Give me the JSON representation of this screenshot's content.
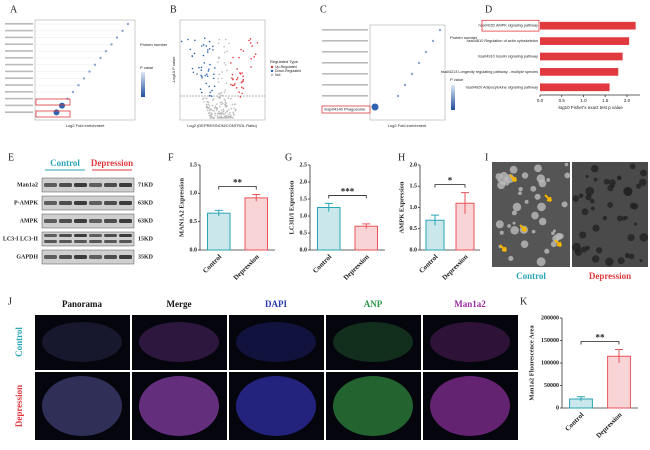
{
  "panels": [
    "A",
    "B",
    "C",
    "E",
    "I",
    "J"
  ],
  "panel_a": {
    "x_label": "Log2 Fold enrichment",
    "legend_size": "Protein number",
    "legend_color": "P value"
  },
  "panel_b": {
    "x_label": "Log2 (DEPRESSION/CONTROL Ratio)",
    "y_label": "-Log10 P value",
    "legend_title": "Regulated Type",
    "legend_items": [
      "Up-Regulated",
      "Down-Regulated",
      "Not"
    ]
  },
  "panel_c": {
    "x_label": "Log2 Fold enrichment",
    "legend_size": "Protein number",
    "legend_color": "P value",
    "highlight": "map04140 Phagosome"
  },
  "panel_e": {
    "groups": [
      "Control",
      "Depression"
    ],
    "rows": [
      "Man1a2",
      "P-AMPK",
      "AMPK",
      "LC3-I LC3-II",
      "GAPDH"
    ],
    "sizes": [
      "71KD",
      "63KD",
      "63KD",
      "15KD",
      "35KD"
    ]
  },
  "panel_i": {
    "groups": [
      "Control",
      "Depression"
    ]
  },
  "panel_j": {
    "columns": [
      "Panorama",
      "Merge",
      "DAPI",
      "ANP",
      "Man1a2"
    ],
    "rows": [
      "Control",
      "Depression"
    ]
  },
  "chart_data": [
    {
      "type": "barh",
      "label": "D",
      "x_label": "-log10 Fisher's exact test p value",
      "categories": [
        "hsa04152 AMPK signaling pathway",
        "hsa04810 Regulation of actin cytoskeleton",
        "hsa04910 Insulin signaling pathway",
        "hsa04213 Longevity regulating pathway - multiple species",
        "hsa04920 Adipocytokine signaling pathway"
      ],
      "values": [
        2.2,
        2.05,
        1.9,
        1.8,
        1.6
      ],
      "color": "#e0393e",
      "highlight": 0,
      "xlim": [
        0,
        2.3
      ],
      "xticks": [
        {
          "value": 0,
          "label": "0.0"
        },
        {
          "value": 0.5,
          "label": "0.5"
        },
        {
          "value": 1,
          "label": "1.0"
        },
        {
          "value": 1.5,
          "label": "1.5"
        },
        {
          "value": 2,
          "label": "2.0"
        }
      ]
    },
    {
      "type": "bar",
      "label": "F",
      "y_label": "MAN1A2 Expression",
      "categories": [
        "Control",
        "Depression"
      ],
      "values": [
        0.65,
        0.92
      ],
      "errors": [
        0.05,
        0.06
      ],
      "colors": [
        "#2aa5b5",
        "#e8545a"
      ],
      "sig": "**",
      "ylim": [
        0,
        1.5
      ],
      "yticks": [
        {
          "value": 0,
          "label": "0.0"
        },
        0.5,
        {
          "value": 1,
          "label": "1.0"
        },
        1.5
      ]
    },
    {
      "type": "bar",
      "label": "G",
      "y_label": "LC3II/I Expression",
      "categories": [
        "Control",
        "Depression"
      ],
      "values": [
        1.25,
        0.7
      ],
      "errors": [
        0.12,
        0.07
      ],
      "colors": [
        "#2aa5b5",
        "#e8545a"
      ],
      "sig": "***",
      "ylim": [
        0,
        2.5
      ],
      "yticks": [
        {
          "value": 0,
          "label": "0.0"
        },
        0.5,
        {
          "value": 1,
          "label": "1.0"
        },
        1.5,
        {
          "value": 2,
          "label": "2.0"
        },
        2.5
      ]
    },
    {
      "type": "bar",
      "label": "H",
      "y_label": "AMPK Expression",
      "categories": [
        "Control",
        "Depression"
      ],
      "values": [
        0.7,
        1.1
      ],
      "errors": [
        0.12,
        0.25
      ],
      "colors": [
        "#2aa5b5",
        "#e8545a"
      ],
      "sig": "*",
      "ylim": [
        0,
        2
      ],
      "yticks": [
        {
          "value": 0,
          "label": "0.0"
        },
        0.5,
        {
          "value": 1,
          "label": "1.0"
        },
        1.5,
        {
          "value": 2,
          "label": "2.0"
        }
      ]
    },
    {
      "type": "bar",
      "label": "K",
      "y_label": "Man1a2 Fluorescence Area",
      "categories": [
        "Control",
        "Depression"
      ],
      "values": [
        20000,
        115000
      ],
      "errors": [
        5000,
        15000
      ],
      "colors": [
        "#2aa5b5",
        "#e8545a"
      ],
      "sig": "**",
      "ylim": [
        0,
        200000
      ],
      "yticks": [
        0,
        50000,
        100000,
        150000,
        200000
      ]
    }
  ]
}
